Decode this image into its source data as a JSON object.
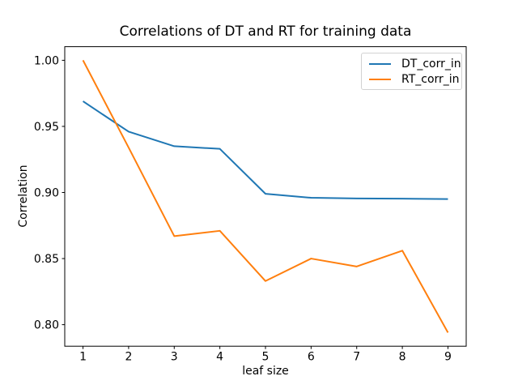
{
  "figure": {
    "background": "#ffffff",
    "text_color": "#000000",
    "spine_color": "#000000",
    "legend_border_color": "#d2d2d2"
  },
  "chart_data": {
    "type": "line",
    "title": "Correlations of DT and RT for training data",
    "xlabel": "leaf size",
    "ylabel": "Correlation",
    "x": [
      1,
      2,
      3,
      4,
      5,
      6,
      7,
      8,
      9
    ],
    "series": [
      {
        "name": "DT_corr_in",
        "color": "#1f77b4",
        "values": [
          0.969,
          0.946,
          0.935,
          0.933,
          0.899,
          0.896,
          0.8955,
          0.8953,
          0.895
        ]
      },
      {
        "name": "RT_corr_in",
        "color": "#ff7f0e",
        "values": [
          1.0,
          0.934,
          0.867,
          0.871,
          0.833,
          0.85,
          0.844,
          0.856,
          0.794
        ]
      }
    ],
    "xlim": [
      0.6,
      9.4
    ],
    "ylim": [
      0.7837,
      1.0103
    ],
    "xticks": {
      "values": [
        1,
        2,
        3,
        4,
        5,
        6,
        7,
        8,
        9
      ],
      "labels": [
        "1",
        "2",
        "3",
        "4",
        "5",
        "6",
        "7",
        "8",
        "9"
      ]
    },
    "yticks": {
      "values": [
        0.8,
        0.85,
        0.9,
        0.95,
        1.0
      ],
      "labels": [
        "0.80",
        "0.85",
        "0.90",
        "0.95",
        "1.00"
      ]
    },
    "grid": false,
    "legend": {
      "position": "upper right"
    }
  }
}
